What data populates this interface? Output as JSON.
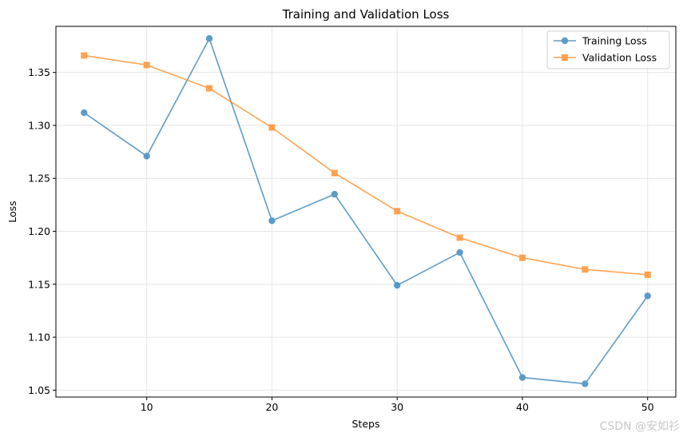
{
  "chart_data": {
    "type": "line",
    "title": "Training and Validation Loss",
    "xlabel": "Steps",
    "ylabel": "Loss",
    "x": [
      5,
      10,
      15,
      20,
      25,
      30,
      35,
      40,
      45,
      50
    ],
    "xticks": [
      10,
      20,
      30,
      40,
      50
    ],
    "yticks": [
      1.05,
      1.1,
      1.15,
      1.2,
      1.25,
      1.3,
      1.35
    ],
    "xlim": [
      2.75,
      52.25
    ],
    "ylim": [
      1.0435,
      1.3935
    ],
    "grid": true,
    "legend_position": "top-right",
    "series": [
      {
        "name": "Training Loss",
        "marker": "circle",
        "color": "#1f77b4",
        "values": [
          1.312,
          1.271,
          1.382,
          1.21,
          1.235,
          1.149,
          1.18,
          1.062,
          1.056,
          1.139
        ]
      },
      {
        "name": "Validation Loss",
        "marker": "square",
        "color": "#ff7f0e",
        "values": [
          1.366,
          1.357,
          1.335,
          1.298,
          1.255,
          1.219,
          1.194,
          1.175,
          1.164,
          1.159
        ]
      }
    ]
  },
  "watermark": "CSDN @安如衫"
}
